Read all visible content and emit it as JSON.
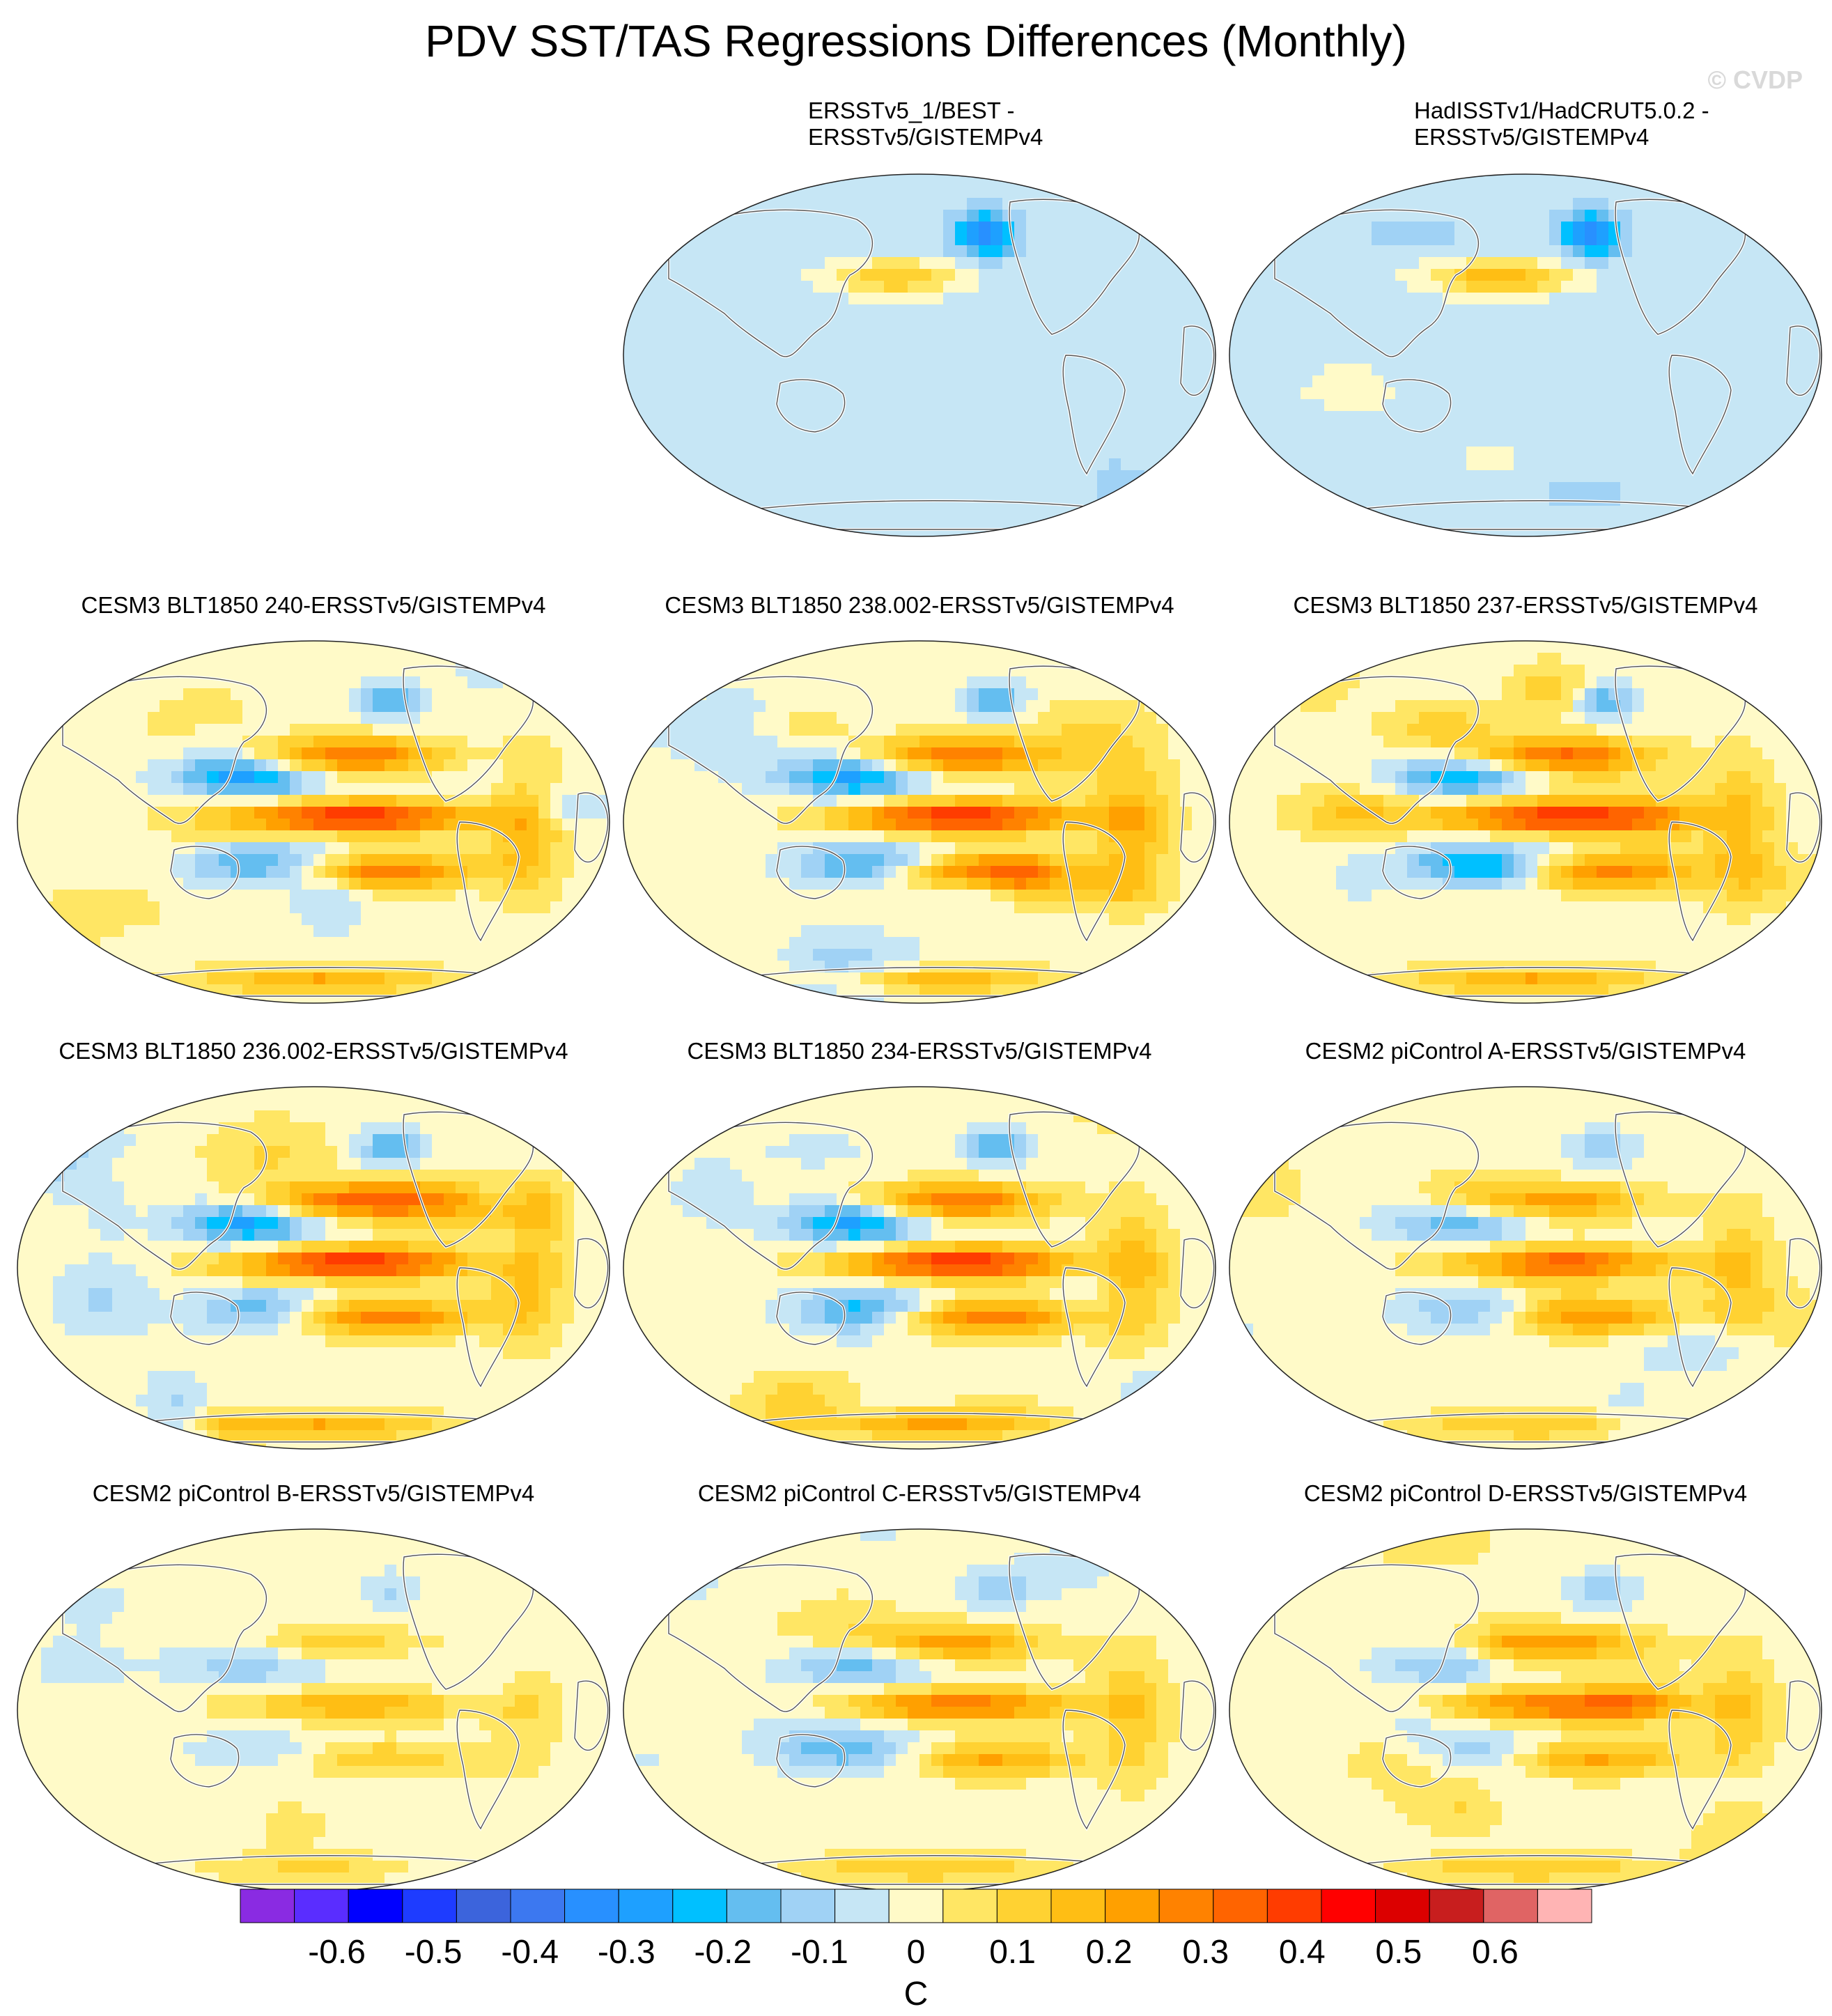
{
  "title": "PDV SST/TAS Regressions Differences (Monthly)",
  "watermark": "© CVDP",
  "panels": [
    {
      "title": "",
      "empty": true
    },
    {
      "title": "ERSSTv5_1/BEST -\nERSSTv5/GISTEMPv4",
      "style": "obs1"
    },
    {
      "title": "HadISSTv1/HadCRUT5.0.2 -\nERSSTv5/GISTEMPv4",
      "style": "obs2"
    },
    {
      "title": "CESM3 BLT1850 240-ERSSTv5/GISTEMPv4",
      "style": "strong"
    },
    {
      "title": "CESM3 BLT1850 238.002-ERSSTv5/GISTEMPv4",
      "style": "strong"
    },
    {
      "title": "CESM3 BLT1850 237-ERSSTv5/GISTEMPv4",
      "style": "strong"
    },
    {
      "title": "CESM3 BLT1850 236.002-ERSSTv5/GISTEMPv4",
      "style": "strong"
    },
    {
      "title": "CESM3 BLT1850 234-ERSSTv5/GISTEMPv4",
      "style": "strong"
    },
    {
      "title": "CESM2 piControl A-ERSSTv5/GISTEMPv4",
      "style": "moderate"
    },
    {
      "title": "CESM2 piControl B-ERSSTv5/GISTEMPv4",
      "style": "weak"
    },
    {
      "title": "CESM2 piControl C-ERSSTv5/GISTEMPv4",
      "style": "moderate"
    },
    {
      "title": "CESM2 piControl D-ERSSTv5/GISTEMPv4",
      "style": "moderate"
    }
  ],
  "chart_data": {
    "type": "heatmap",
    "projection": "Robinson (Pacific-centered)",
    "colorbar": {
      "label": "C",
      "ticks": [
        "-0.6",
        "-0.5",
        "-0.4",
        "-0.3",
        "-0.2",
        "-0.1",
        "0",
        "0.1",
        "0.2",
        "0.3",
        "0.4",
        "0.5",
        "0.6"
      ],
      "tick_values": [
        -0.6,
        -0.5,
        -0.4,
        -0.3,
        -0.2,
        -0.1,
        0,
        0.1,
        0.2,
        0.3,
        0.4,
        0.5,
        0.6
      ],
      "range": [
        -0.7,
        0.7
      ],
      "colors": [
        "#8a2be2",
        "#5a2dff",
        "#0000ff",
        "#1e3cff",
        "#3c64dc",
        "#3c78f0",
        "#2890ff",
        "#1ea0ff",
        "#00c0ff",
        "#64bef0",
        "#a0d2f5",
        "#c6e6f5",
        "#fffac8",
        "#ffe664",
        "#ffd232",
        "#ffbe14",
        "#ffa000",
        "#ff8200",
        "#ff6400",
        "#ff3c00",
        "#ff0000",
        "#dc0000",
        "#c81e1e",
        "#e06464",
        "#ffb4b4"
      ]
    }
  }
}
